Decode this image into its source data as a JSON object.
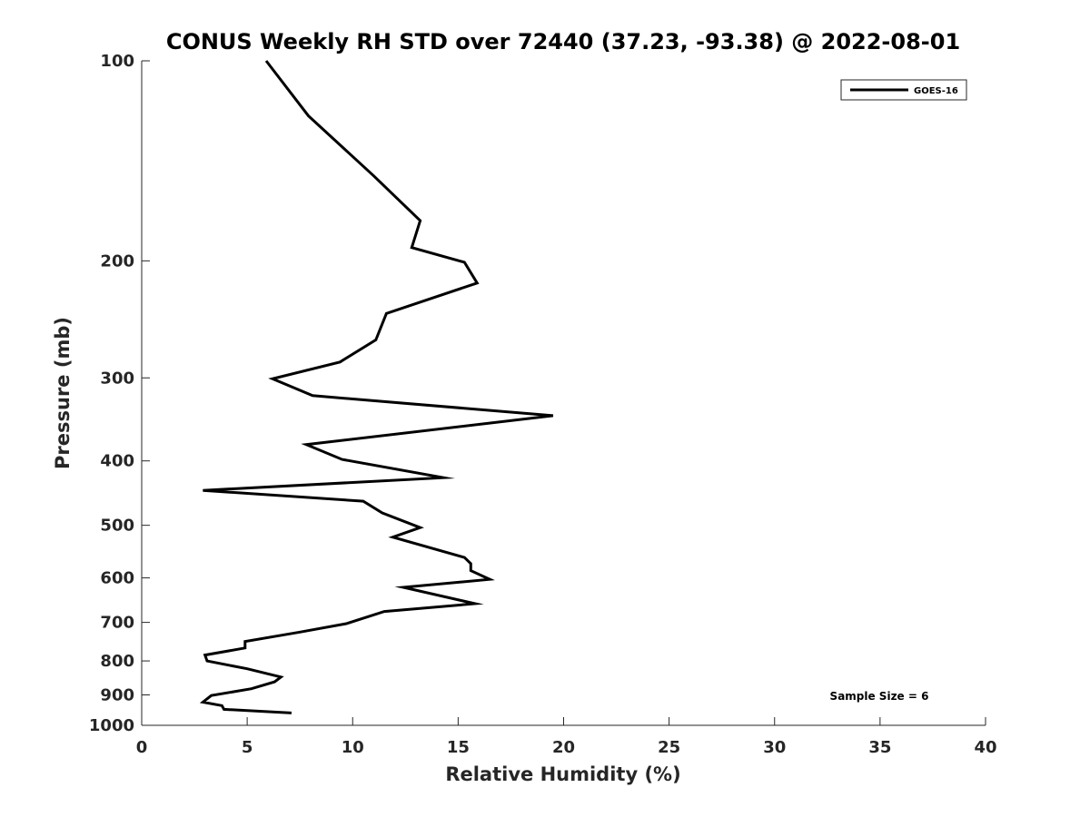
{
  "chart_data": {
    "type": "line",
    "title": "CONUS Weekly RH STD over 72440 (37.23, -93.38) @ 2022-08-01",
    "xlabel": "Relative Humidity (%)",
    "ylabel": "Pressure (mb)",
    "xlim": [
      0,
      40
    ],
    "ylim": [
      100,
      1000
    ],
    "y_scale": "log",
    "y_reversed": true,
    "x_ticks": [
      0,
      5,
      10,
      15,
      20,
      25,
      30,
      35,
      40
    ],
    "x_tick_labels": [
      "0",
      "5",
      "10",
      "15",
      "20",
      "25",
      "30",
      "35",
      "40"
    ],
    "y_ticks": [
      100,
      200,
      300,
      400,
      500,
      600,
      700,
      800,
      900,
      1000
    ],
    "y_tick_labels": [
      "100",
      "200",
      "300",
      "400",
      "500",
      "600",
      "700",
      "800",
      "900",
      "1000"
    ],
    "grid": false,
    "legend_position": "top-right",
    "annotation": "Sample Size = 6",
    "series": [
      {
        "name": "GOES-16",
        "color": "#000000",
        "x": [
          5.9,
          7.9,
          11.0,
          13.2,
          12.8,
          15.3,
          15.9,
          11.6,
          11.1,
          9.4,
          6.2,
          8.1,
          19.5,
          7.8,
          9.5,
          14.3,
          2.9,
          10.5,
          11.4,
          13.2,
          11.9,
          15.3,
          15.6,
          15.6,
          16.5,
          12.4,
          15.8,
          11.5,
          9.7,
          7.5,
          4.9,
          4.9,
          3.0,
          3.1,
          5.0,
          6.6,
          6.3,
          5.2,
          3.3,
          2.9,
          3.8,
          3.9,
          7.1
        ]
      }
    ],
    "y": [
      100,
      121,
      149,
      174,
      191,
      201,
      216,
      240,
      263,
      284,
      301,
      319,
      342,
      378,
      398,
      424,
      443,
      460,
      479,
      504,
      521,
      559,
      571,
      585,
      603,
      620,
      656,
      674,
      703,
      724,
      748,
      765,
      784,
      800,
      822,
      846,
      860,
      881,
      902,
      923,
      934,
      946,
      958
    ]
  }
}
